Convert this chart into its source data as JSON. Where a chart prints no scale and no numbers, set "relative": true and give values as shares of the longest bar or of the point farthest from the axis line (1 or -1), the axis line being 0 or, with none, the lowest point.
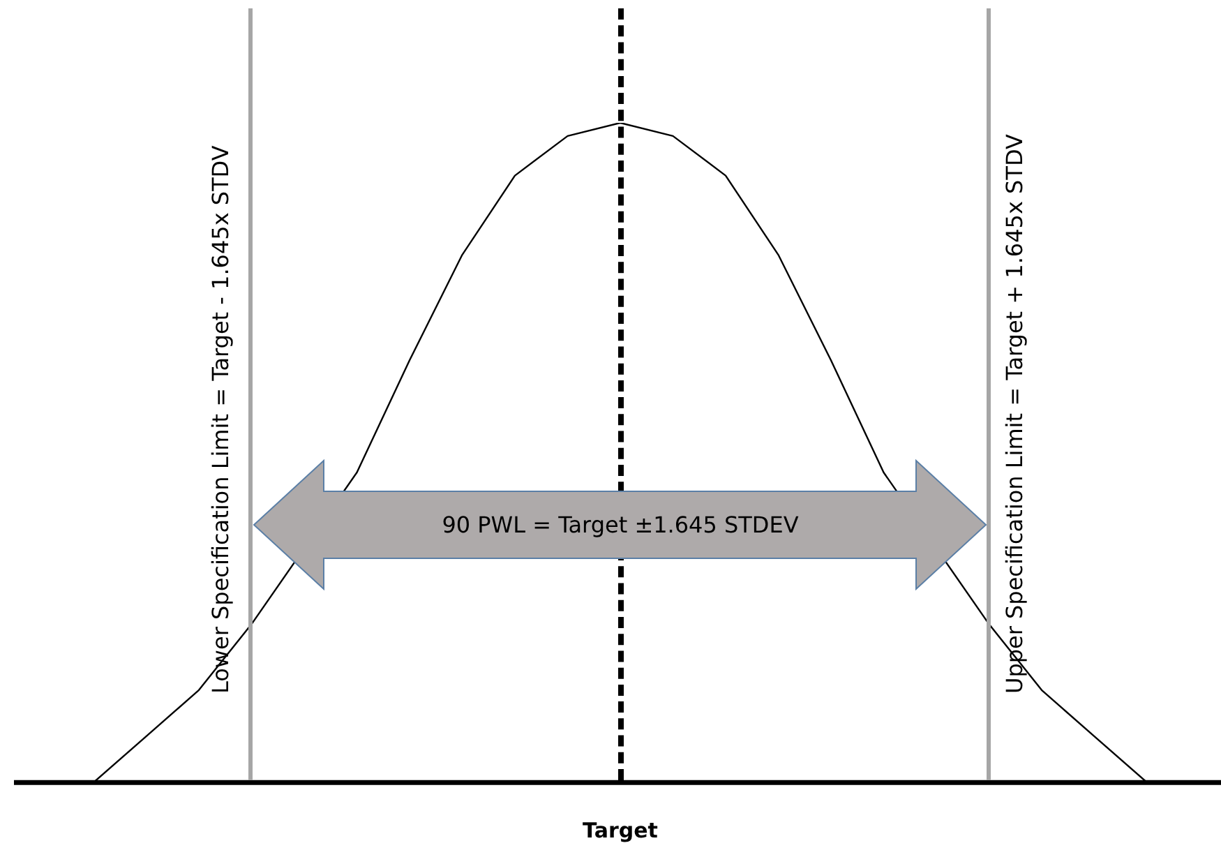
{
  "chart_data": {
    "type": "line",
    "relative": true,
    "xlabel": "Target",
    "grid": false,
    "legend": false,
    "marker": "none",
    "line_style": "solid",
    "categories": [
      null,
      null,
      null,
      null,
      null,
      null,
      null,
      null,
      null,
      null,
      null,
      null,
      null,
      null,
      null,
      null,
      null,
      null,
      null,
      null,
      null
    ],
    "series": [
      {
        "color": "#000000",
        "values": [
          0,
          0.07,
          0.14,
          0.24,
          null,
          0.47,
          0.64,
          0.8,
          0.92,
          0.98,
          1,
          0.98,
          0.92,
          0.8,
          0.64,
          0.47,
          null,
          0.24,
          0.14,
          0.07,
          0
        ]
      }
    ],
    "annotations": [
      "Lower Specification  Limit = Target  - 1.645x STDV",
      "Upper Specification  Limit = Target  + 1.645x STDV",
      "90 PWL = Target ±1.645 STDEV"
    ]
  }
}
